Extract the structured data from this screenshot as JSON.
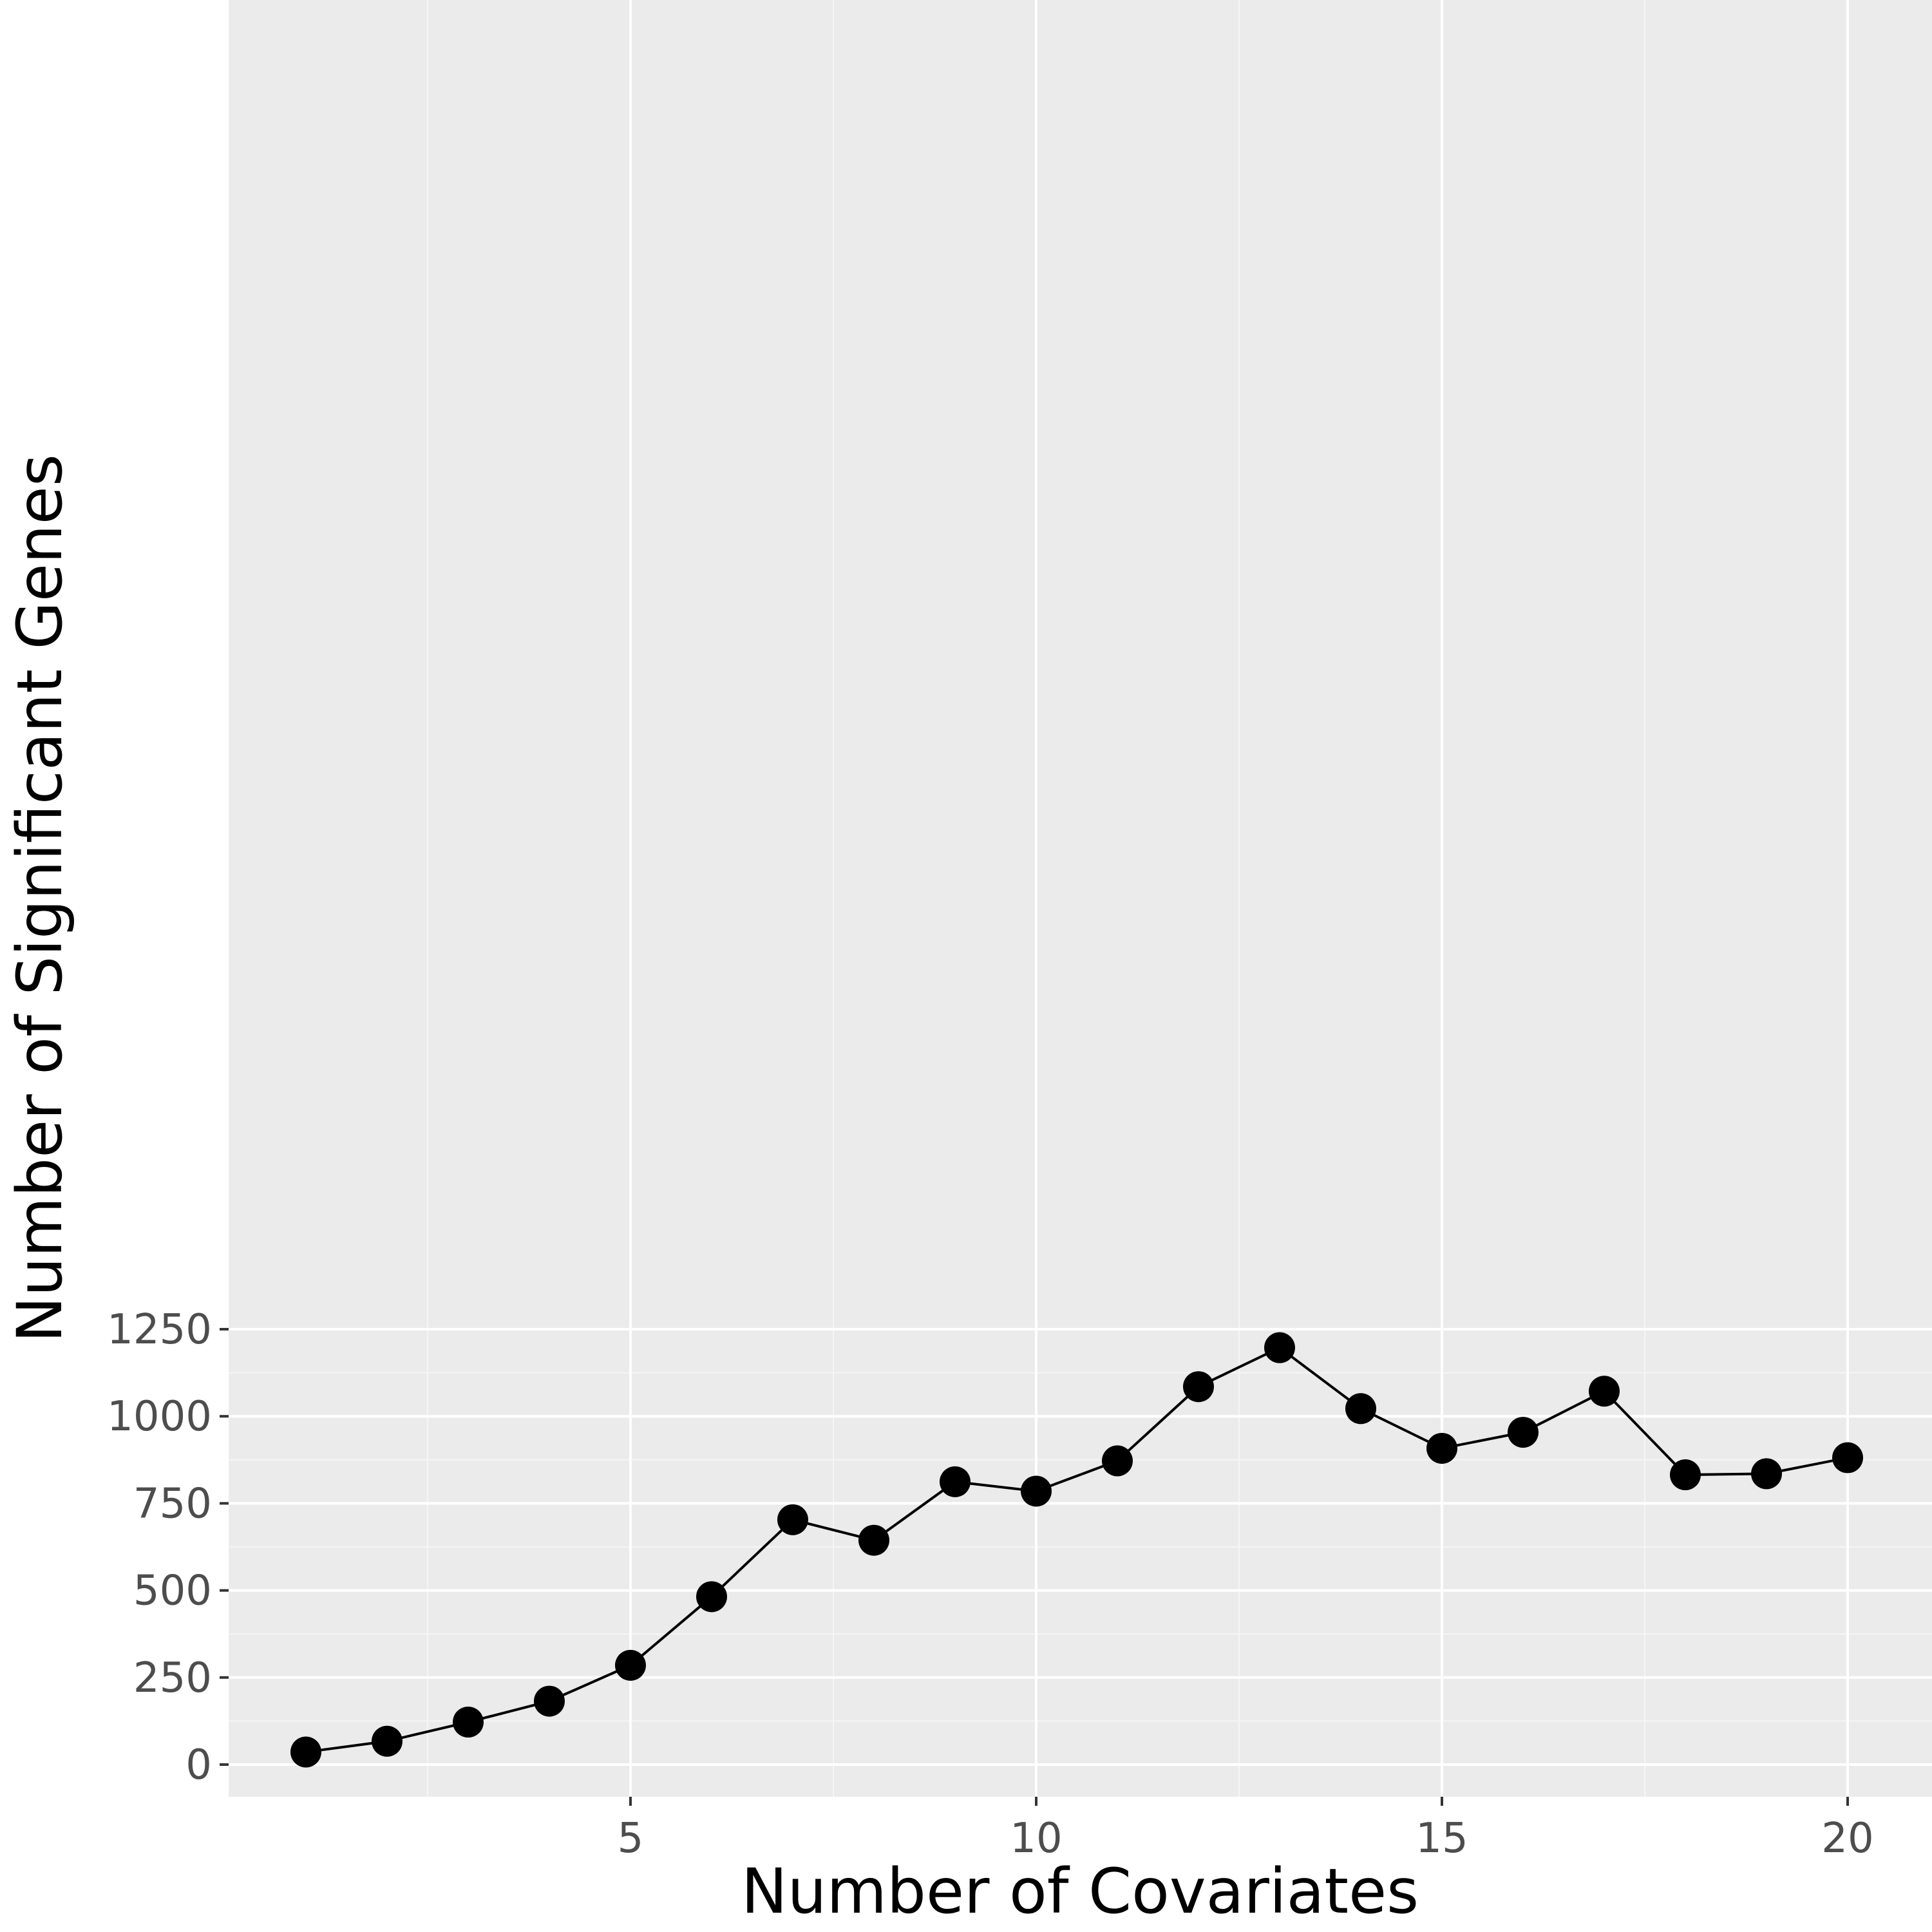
{
  "chart_data": {
    "type": "line",
    "title": "",
    "xlabel": "Number of Covariates",
    "ylabel": "Number of Significant Genes",
    "xlim": [
      0.05,
      20.95
    ],
    "ylim": [
      -40,
      1250
    ],
    "x_ticks": [
      5,
      10,
      15,
      20
    ],
    "y_ticks": [
      0,
      250,
      500,
      750,
      1000,
      1250
    ],
    "x_tick_labels": [
      "5",
      "10",
      "15",
      "20"
    ],
    "y_tick_labels": [
      "0",
      "250",
      "500",
      "750",
      "1000",
      "1250"
    ],
    "grid": true,
    "legend": "none",
    "series": [
      {
        "x": [
          1,
          2,
          3,
          4,
          5,
          6,
          7,
          8,
          9,
          10,
          11,
          12,
          13,
          14,
          15,
          16,
          17,
          18,
          19,
          20
        ],
        "y": [
          36,
          67,
          122,
          182,
          285,
          482,
          703,
          644,
          812,
          785,
          872,
          1085,
          1197,
          1022,
          908,
          954,
          1072,
          832,
          835,
          881
        ],
        "color": "#000000"
      }
    ]
  },
  "colors": {
    "panel_background": "#ebebeb",
    "grid_major": "#ffffff",
    "grid_minor": "#f5f5f5",
    "tick_mark": "#333333",
    "tick_label": "#4d4d4d",
    "line": "#000000",
    "point": "#000000"
  }
}
